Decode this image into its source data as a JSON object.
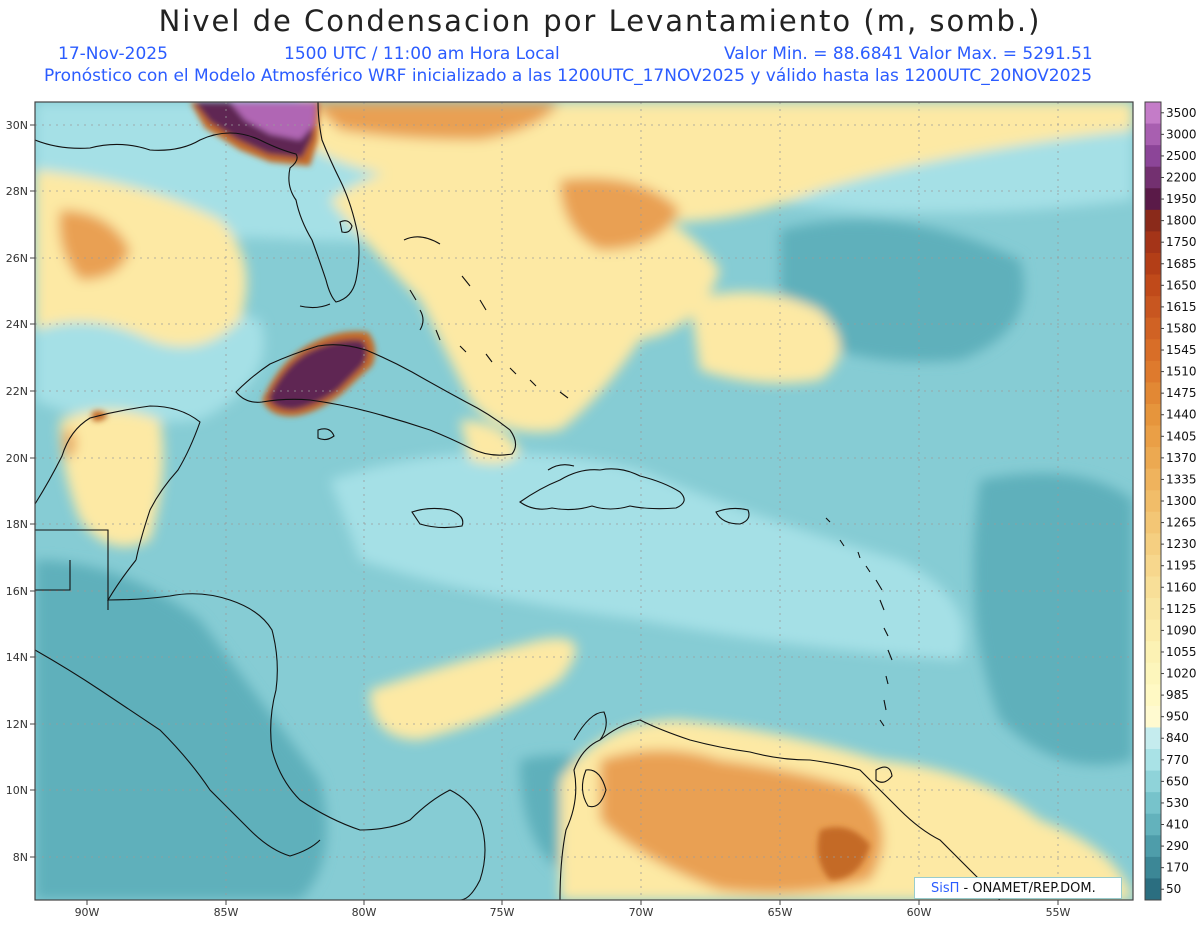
{
  "header": {
    "title": "Nivel de Condensacion por Levantamiento (m, somb.)",
    "date": "17-Nov-2025",
    "time": "1500 UTC / 11:00 am Hora Local",
    "range": "Valor Min. = 88.6841   Valor Max. = 5291.51",
    "description": "Pronóstico con el Modelo Atmosférico WRF inicializado a las 1200UTC_17NOV2025 y válido hasta las  1200UTC_20NOV2025"
  },
  "axes": {
    "lat_labels": [
      "30N",
      "28N",
      "26N",
      "24N",
      "22N",
      "20N",
      "18N",
      "16N",
      "14N",
      "12N",
      "10N",
      "8N"
    ],
    "lon_labels": [
      "90W",
      "85W",
      "80W",
      "75W",
      "70W",
      "65W",
      "60W",
      "55W"
    ]
  },
  "colorbar": {
    "labels": [
      "3500",
      "3000",
      "2500",
      "2200",
      "1950",
      "1800",
      "1750",
      "1685",
      "1650",
      "1615",
      "1580",
      "1545",
      "1510",
      "1475",
      "1440",
      "1405",
      "1370",
      "1335",
      "1300",
      "1265",
      "1230",
      "1195",
      "1160",
      "1125",
      "1090",
      "1055",
      "1020",
      "985",
      "950",
      "840",
      "770",
      "650",
      "530",
      "410",
      "290",
      "170",
      "50"
    ],
    "colors": [
      "#c47cc8",
      "#a85fb0",
      "#8c4598",
      "#733070",
      "#5a1a48",
      "#8a2a1a",
      "#a43418",
      "#b33e17",
      "#c04a1a",
      "#c85620",
      "#d06224",
      "#d86e28",
      "#de7a2d",
      "#e28834",
      "#e6953c",
      "#ea9f46",
      "#eca951",
      "#efb35d",
      "#f1bd69",
      "#f3c675",
      "#f5cf81",
      "#f7d78d",
      "#f8df98",
      "#f9e6a2",
      "#fbecaa",
      "#fcf2b4",
      "#fdf6bc",
      "#fff9c4",
      "#fffad0",
      "#c5ecee",
      "#a9e2e6",
      "#8fd3d9",
      "#77c3cb",
      "#63b2bc",
      "#4e9daa",
      "#3c8796",
      "#2b6e80"
    ]
  },
  "map_colors": {
    "ocean": "#86ccd4",
    "ocean_light": "#a5e0e6",
    "ocean_dark": "#5fb0bb",
    "yellow": "#fde9a4",
    "yellow_light": "#fff5c2",
    "orange": "#e9a052",
    "orange_dark": "#c46a28",
    "purple_dark": "#5e2552",
    "purple_light": "#b066b4"
  },
  "logo": {
    "brand": "SisΠ",
    "org": " - ONAMET/REP.DOM."
  }
}
